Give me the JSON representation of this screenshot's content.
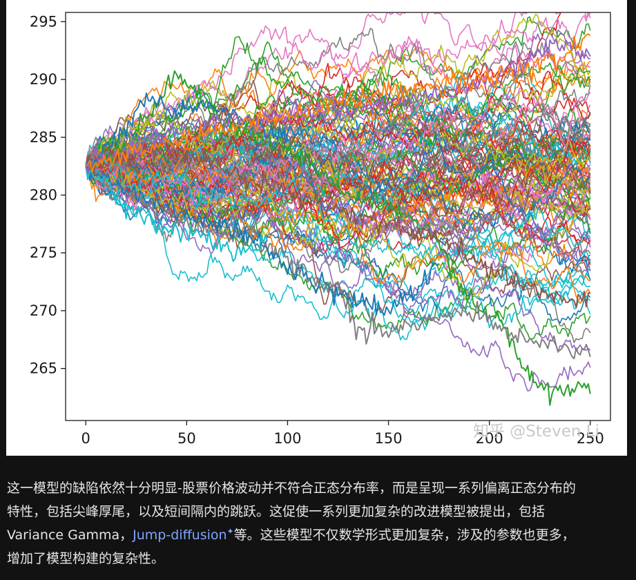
{
  "chart_data": {
    "type": "line",
    "title": "",
    "xlabel": "",
    "ylabel": "",
    "xlim": [
      -10,
      260
    ],
    "ylim": [
      260.5,
      295.8
    ],
    "x_ticks": [
      0,
      50,
      100,
      150,
      200,
      250
    ],
    "y_ticks": [
      265,
      270,
      275,
      280,
      285,
      290,
      295
    ],
    "x_tick_labels": [
      "0",
      "50",
      "100",
      "150",
      "200",
      "250"
    ],
    "y_tick_labels": [
      "265",
      "270",
      "275",
      "280",
      "285",
      "290",
      "295"
    ],
    "n_steps": 250,
    "start_value": 282.5,
    "n_series": 120,
    "grid": false,
    "legend": "none",
    "palette": [
      "#1f77b4",
      "#ff7f0e",
      "#2ca02c",
      "#d62728",
      "#9467bd",
      "#8c564b",
      "#e377c2",
      "#7f7f7f",
      "#bcbd22",
      "#17becf"
    ],
    "highlighted_series": [
      {
        "name": "",
        "color": "#2ca02c",
        "x": [
          0,
          20,
          45,
          70,
          100,
          130,
          150,
          170,
          190,
          205,
          215,
          225,
          235,
          245,
          250
        ],
        "y": [
          282.5,
          284.0,
          290.5,
          286.0,
          284.0,
          280.0,
          279.0,
          277.0,
          271.0,
          269.5,
          265.5,
          263.5,
          263.0,
          263.5,
          262.8
        ]
      },
      {
        "name": "",
        "color": "#7f7f7f",
        "x": [
          0,
          30,
          60,
          90,
          110,
          125,
          135,
          150,
          165,
          175,
          195,
          210,
          225,
          235,
          245,
          250
        ],
        "y": [
          282.5,
          279.0,
          277.0,
          276.0,
          273.0,
          272.0,
          268.5,
          268.0,
          269.0,
          269.5,
          270.0,
          268.0,
          267.5,
          267.0,
          266.5,
          266.0
        ]
      },
      {
        "name": "",
        "color": "#1f77b4",
        "x": [
          0,
          25,
          55,
          85,
          100,
          115,
          125,
          140,
          150,
          160,
          175
        ],
        "y": [
          282.5,
          280.0,
          278.0,
          276.0,
          273.5,
          272.5,
          271.5,
          270.5,
          269.8,
          271.5,
          274.0
        ]
      },
      {
        "name": "",
        "color": "#8c564b",
        "x": [
          0,
          30,
          60,
          100,
          140,
          180,
          200,
          220,
          240,
          250
        ],
        "y": [
          282.5,
          284.0,
          283.0,
          280.0,
          278.0,
          276.0,
          273.5,
          272.0,
          271.0,
          271.5
        ]
      },
      {
        "name": "",
        "color": "#17becf",
        "x": [
          0,
          20,
          40,
          60,
          75,
          90
        ],
        "y": [
          282.5,
          279.0,
          277.0,
          276.5,
          275.0,
          276.0
        ]
      },
      {
        "name": "",
        "color": "#1f77b4",
        "x": [
          0,
          15,
          30,
          45,
          60,
          80,
          100
        ],
        "y": [
          282.5,
          285.0,
          288.5,
          287.0,
          288.0,
          286.0,
          285.0
        ]
      },
      {
        "name": "",
        "color": "#9467bd",
        "x": [
          0,
          50,
          100,
          150,
          200,
          240,
          250
        ],
        "y": [
          282.5,
          286.0,
          287.0,
          288.0,
          290.0,
          293.5,
          292.0
        ]
      },
      {
        "name": "",
        "color": "#ff7f0e",
        "x": [
          0,
          50,
          100,
          150,
          200,
          240,
          250
        ],
        "y": [
          282.5,
          285.0,
          287.0,
          289.0,
          290.0,
          292.0,
          293.8
        ]
      }
    ]
  },
  "watermark": "知乎 @Steven Li",
  "caption": {
    "line1": "这一模型的缺陷依然十分明显-股票价格波动并不符合正态分布率，而是呈现一系列偏离正态分布的",
    "line2": "特性，包括尖峰厚尾，以及短间隔内的跳跃。这促使一系列更加复杂的改进模型被提出，包括",
    "line3_prefix": "Variance Gamma，",
    "line3_link": "Jump-diffusion",
    "line3_link_mark": "✦",
    "line3_suffix": "等。这些模型不仅数学形式更加复杂，涉及的参数也更多，",
    "line4": "增加了模型构建的复杂性。"
  }
}
